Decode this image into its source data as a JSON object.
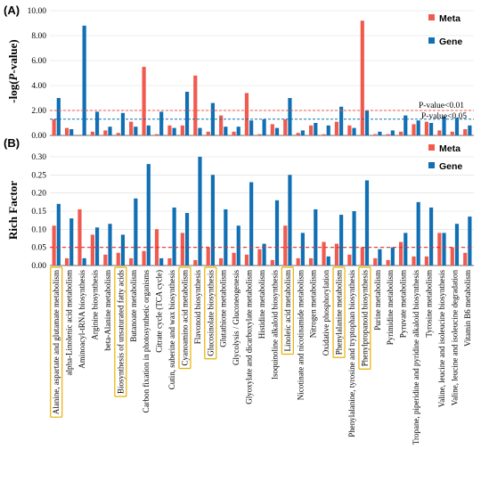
{
  "categories": [
    "Alanine, aspartate and glutamate metabolism",
    "alpha-Linolenic acid metabolism",
    "Aminoacyl-tRNA biosynthesis",
    "Arginine biosynthesis",
    "beta-Alanine metabolism",
    "Biosynthesis of unsaturated fatty acids",
    "Butanoate metabolism",
    "Carbon fixation in photosynthetic organisms",
    "Citrate cycle (TCA cycle)",
    "Cutin, suberine and wax biosynthesis",
    "Cyanoamino acid metabolism",
    "Flavonoid biosynthesis",
    "Glucosinolate biosynthesis",
    "Glutathione metabolism",
    "Glycolysis / Gluconeogenesis",
    "Glyoxylate and dicarboxylate metabolism",
    "Histidine metabolism",
    "Isoquinoline alkaloid biosynthesis",
    "Linoleic acid metabolism",
    "Nicotinate and nicotinamide metabolism",
    "Nitrogen metabolism",
    "Oxidative phosphorylation",
    "Phenylalanine metabolism",
    "Phenylalanine, tyrosine and tryptophan biosynthesis",
    "Phenylpropanoid biosynthesis",
    "Purine metabolism",
    "Pyrimidine metabolism",
    "Pyruvate metabolism",
    "Tropane, piperidine and pyridine alkaloid biosynthesis",
    "Tyrosine metabolism",
    "Valine, leucine and isoleucine biosynthesis",
    "Valine, leucine and isoleucine degradation",
    "Vitamin B6 metabolism"
  ],
  "highlighted_categories": [
    "Alanine, aspartate and glutamate metabolism",
    "Biosynthesis of unsaturated fatty acids",
    "Cyanoamino acid metabolism",
    "Glucosinolate biosynthesis",
    "Linoleic acid metabolism",
    "Phenylalanine metabolism",
    "Phenylpropanoid biosynthesis"
  ],
  "colors": {
    "meta": "#F15A4F",
    "gene": "#1170B4",
    "highlight": "#E8B100"
  },
  "chart_data": [
    {
      "type": "bar",
      "panel": "(A)",
      "ylabel": "-log(P-value)",
      "ylim": [
        0,
        10
      ],
      "yticks": [
        "0.00",
        "2.00",
        "4.00",
        "6.00",
        "8.00",
        "10.00"
      ],
      "legend": {
        "position": "top-right",
        "entries": [
          "Meta",
          "Gene"
        ]
      },
      "thresholds": [
        {
          "label": "P-value<0.01",
          "value": 2.0,
          "color": "#F15A4F"
        },
        {
          "label": "P-value<0.05",
          "value": 1.3,
          "color": "#1170B4"
        }
      ],
      "series": [
        {
          "name": "Meta",
          "values": [
            1.3,
            0.6,
            0.05,
            0.3,
            0.4,
            0.2,
            1.1,
            5.5,
            0.1,
            0.8,
            0.8,
            4.8,
            0.3,
            1.6,
            0.3,
            3.4,
            0.1,
            0.9,
            1.3,
            0.2,
            0.8,
            0.1,
            1.1,
            0.8,
            9.2,
            0.1,
            0.1,
            0.3,
            0.9,
            1.1,
            0.4,
            0.3,
            0.5
          ]
        },
        {
          "name": "Gene",
          "values": [
            3.0,
            0.5,
            8.8,
            1.9,
            0.7,
            1.8,
            0.7,
            0.8,
            1.9,
            0.6,
            3.5,
            0.6,
            2.6,
            0.7,
            0.7,
            1.2,
            1.3,
            0.6,
            3.0,
            0.4,
            1.0,
            0.8,
            2.3,
            0.6,
            2.0,
            0.3,
            0.4,
            1.6,
            1.2,
            1.0,
            1.5,
            1.4,
            0.8
          ]
        }
      ]
    },
    {
      "type": "bar",
      "panel": "(B)",
      "ylabel": "Rich Factor",
      "ylim": [
        0,
        0.3
      ],
      "yticks": [
        "0.00",
        "0.05",
        "0.10",
        "0.15",
        "0.20",
        "0.25",
        "0.30"
      ],
      "legend": {
        "position": "top-right",
        "entries": [
          "Meta",
          "Gene"
        ]
      },
      "threshold": {
        "value": 0.05,
        "color": "#D9322B"
      },
      "series": [
        {
          "name": "Meta",
          "values": [
            0.11,
            0.02,
            0.155,
            0.085,
            0.03,
            0.035,
            0.02,
            0.04,
            0.1,
            0.02,
            0.09,
            0.015,
            0.05,
            0.02,
            0.035,
            0.03,
            0.045,
            0.015,
            0.11,
            0.02,
            0.02,
            0.065,
            0.06,
            0.03,
            0.05,
            0.02,
            0.015,
            0.065,
            0.025,
            0.025,
            0.09,
            0.05,
            0.035
          ]
        },
        {
          "name": "Gene",
          "values": [
            0.17,
            0.13,
            0.02,
            0.105,
            0.115,
            0.085,
            0.185,
            0.28,
            0.02,
            0.16,
            0.145,
            0.3,
            0.25,
            0.155,
            0.11,
            0.23,
            0.06,
            0.18,
            0.25,
            0.09,
            0.155,
            0.025,
            0.14,
            0.15,
            0.235,
            0.045,
            0.05,
            0.09,
            0.175,
            0.16,
            0.09,
            0.115,
            0.135
          ]
        }
      ]
    }
  ]
}
